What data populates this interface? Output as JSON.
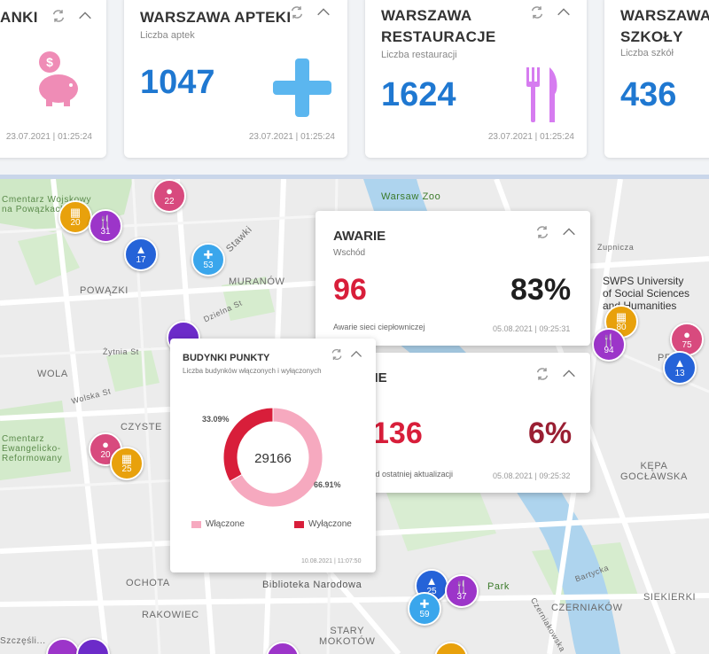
{
  "top_cards": [
    {
      "title": "ANKI",
      "sub": "",
      "value": "",
      "time": "23.07.2021 | 01:25:24",
      "icon": "piggy-bank-icon"
    },
    {
      "title": "WARSZAWA APTEKI",
      "sub": "Liczba aptek",
      "value": "1047",
      "time": "23.07.2021 | 01:25:24",
      "icon": "plus-icon"
    },
    {
      "title": "WARSZAWA\nRESTAURACJE",
      "sub": "Liczba restauracji",
      "value": "1624",
      "time": "23.07.2021 | 01:25:24",
      "icon": "fork-knife-icon"
    },
    {
      "title": "WARSZAWA\nSZKOŁY",
      "sub": "Liczba szkół",
      "value": "436",
      "time": "",
      "icon": ""
    }
  ],
  "colors": {
    "blue_value": "#1f78d1",
    "pink": "#ef8cb6",
    "light_blue": "#5bb6ef",
    "violet": "#d67cf0",
    "red": "#d81e3a",
    "maroon": "#9a1f33",
    "donut_pink": "#f6a9bf",
    "donut_red": "#d81e3a"
  },
  "map_labels": {
    "cemetery_top": "Cmentarz Wojskowy\nna Powązkach",
    "warsaw_zoo": "Warsaw Zoo",
    "stawki": "Stawki",
    "muranow": "MURANÓW",
    "powazki": "POWĄZKI",
    "dzielna": "Dzielna St",
    "zytnia": "Żytnia St",
    "wola": "WOLA",
    "wolska": "Wolska St",
    "czyste": "CZYSTE",
    "cemetery_left": "Cmentarz\nEwangelicko-\nReformowany",
    "swps": "SWPS University\nof Social Sciences\nand Humanities",
    "zupnicza": "Zupnicza",
    "praga": "PR...",
    "kepa": "KĘPA\nGOCŁAWSKA",
    "ochota": "OCHOTA",
    "rakowiec": "RAKOWIEC",
    "biblioteka": "Biblioteka Narodowa",
    "park": "Park",
    "bartycka": "Bartycka",
    "czerniakow": "CZERNIAKÓW",
    "siekierki": "SIEKIERKI",
    "stary_mokotow": "STARY\nMOKOTÓW",
    "szczesliwice": "Szczęśli...",
    "czerniakowska": "Czerniakowska"
  },
  "markers": [
    {
      "value": "20"
    },
    {
      "value": "31"
    },
    {
      "value": "22"
    },
    {
      "value": "17"
    },
    {
      "value": "53"
    },
    {
      "value": "80"
    },
    {
      "value": "94"
    },
    {
      "value": "75"
    },
    {
      "value": "13"
    },
    {
      "value": "20"
    },
    {
      "value": "25"
    },
    {
      "value": "25"
    },
    {
      "value": "37"
    },
    {
      "value": "59"
    }
  ],
  "awarie": {
    "title": "AWARIE",
    "sub": "Wschód",
    "count": "96",
    "percent": "83%",
    "desc": "Awarie sieci ciepłowniczej",
    "time": "05.08.2021 | 09:25:31"
  },
  "awarie2": {
    "title": "...IE",
    "count": "136",
    "percent": "6%",
    "desc": "...d ostatniej aktualizacji",
    "time": "05.08.2021 | 09:25:32"
  },
  "budynki": {
    "title": "BUDYNKI PUNKTY",
    "sub": "Liczba budynków włączonych i wyłączonych",
    "total": "29166",
    "pct_off_label": "33.09%",
    "pct_on_label": "66.91%",
    "legend_on": "Włączone",
    "legend_off": "Wyłączone",
    "time": "10.08.2021 | 11:07:50"
  },
  "chart_data": {
    "type": "pie",
    "categories": [
      "Włączone",
      "Wyłączone"
    ],
    "values": [
      66.91,
      33.09
    ],
    "colors": [
      "#f6a9bf",
      "#d81e3a"
    ],
    "center_label": "29166"
  }
}
